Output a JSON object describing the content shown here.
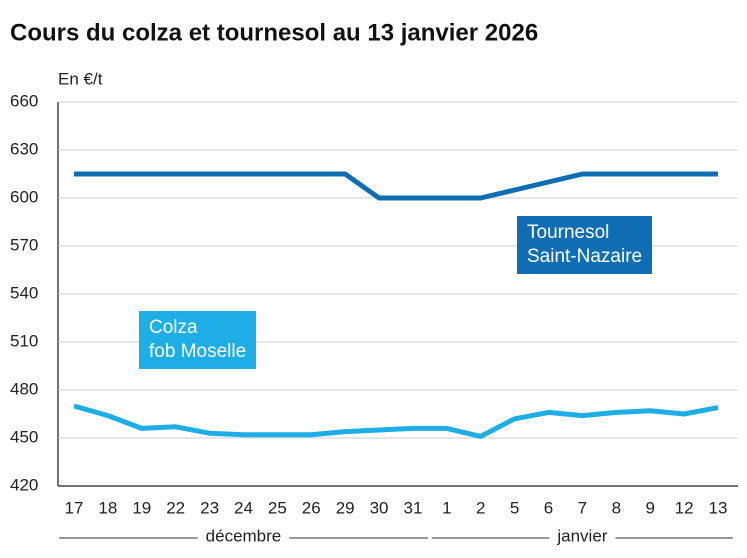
{
  "chart_data": {
    "type": "line",
    "title": "Cours du colza et tournesol au 13 janvier 2026",
    "y_label": "En €/t",
    "categories": [
      "17",
      "18",
      "19",
      "22",
      "23",
      "24",
      "25",
      "26",
      "29",
      "30",
      "31",
      "1",
      "2",
      "5",
      "6",
      "7",
      "8",
      "9",
      "12",
      "13"
    ],
    "x_groups": [
      {
        "label": "décembre",
        "span": 11
      },
      {
        "label": "janvier",
        "span": 9
      }
    ],
    "series": [
      {
        "name": "Tournesol\nSaint-Nazaire",
        "color": "#0f6db3",
        "values": [
          615,
          615,
          615,
          615,
          615,
          615,
          615,
          615,
          615,
          600,
          600,
          600,
          600,
          605,
          610,
          615,
          615,
          615,
          615,
          615
        ]
      },
      {
        "name": "Colza\nfob Moselle",
        "color": "#1eaee6",
        "values": [
          470,
          464,
          456,
          457,
          453,
          452,
          452,
          452,
          454,
          455,
          456,
          456,
          451,
          462,
          466,
          464,
          466,
          467,
          465,
          469
        ]
      }
    ],
    "ylim": [
      420,
      660
    ],
    "yticks": [
      420,
      450,
      480,
      510,
      540,
      570,
      600,
      630,
      660
    ],
    "grid": true
  }
}
